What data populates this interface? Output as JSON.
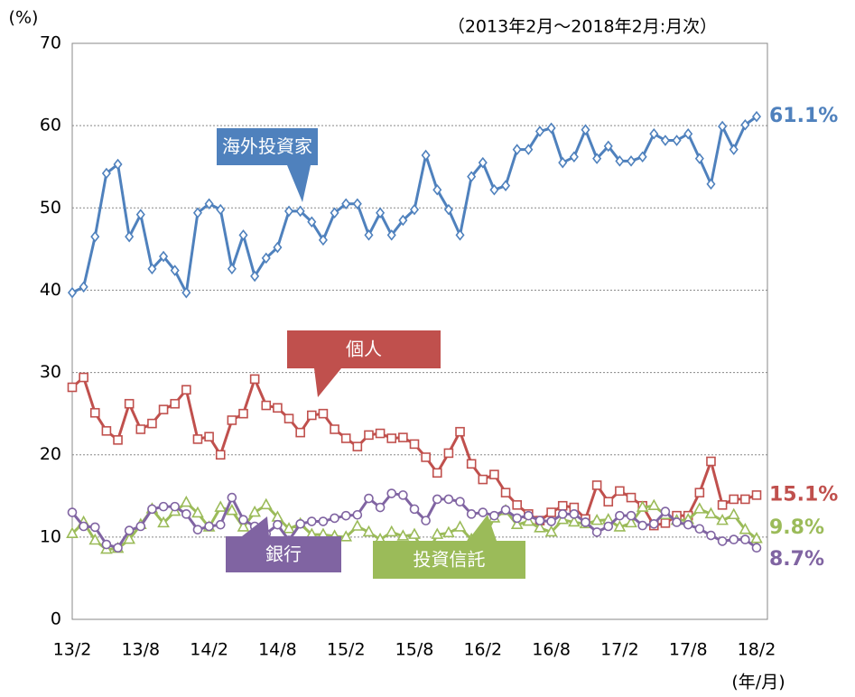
{
  "chart_data": {
    "type": "line",
    "title": "（2013年2月～2018年2月:月次）",
    "y_label": "(%)",
    "x_label": "(年/月)",
    "categories": [
      "13/2",
      null,
      null,
      null,
      null,
      null,
      "13/8",
      null,
      null,
      null,
      null,
      null,
      "14/2",
      null,
      null,
      null,
      null,
      null,
      "14/8",
      null,
      null,
      null,
      null,
      null,
      "15/2",
      null,
      null,
      null,
      null,
      null,
      "15/8",
      null,
      null,
      null,
      null,
      null,
      "16/2",
      null,
      null,
      null,
      null,
      null,
      "16/8",
      null,
      null,
      null,
      null,
      null,
      "17/2",
      null,
      null,
      null,
      null,
      null,
      "17/8",
      null,
      null,
      null,
      null,
      null,
      "18/2"
    ],
    "ylim": [
      0,
      70
    ],
    "yticks": [
      0,
      10,
      20,
      30,
      40,
      50,
      60,
      70
    ],
    "grid": true,
    "series": [
      {
        "name": "海外投資家",
        "color": "#4f81bd",
        "marker": "diamond",
        "end_label": "61.1%",
        "values": [
          39.7,
          40.4,
          46.5,
          54.2,
          55.3,
          46.5,
          49.2,
          42.6,
          44.1,
          42.4,
          39.7,
          49.4,
          50.5,
          49.8,
          42.6,
          46.7,
          41.7,
          43.9,
          45.2,
          49.6,
          49.6,
          48.3,
          46.1,
          49.4,
          50.5,
          50.5,
          46.7,
          49.4,
          46.7,
          48.5,
          49.8,
          56.4,
          52.2,
          49.8,
          46.7,
          53.8,
          55.5,
          52.2,
          52.7,
          57.1,
          57.1,
          59.3,
          59.7,
          55.5,
          56.2,
          59.5,
          56.0,
          57.5,
          55.7,
          55.7,
          56.2,
          59.0,
          58.2,
          58.2,
          59.0,
          56.0,
          52.9,
          59.9,
          57.1,
          60.1,
          61.1
        ]
      },
      {
        "name": "個人",
        "color": "#c0504d",
        "marker": "square",
        "end_label": "15.1%",
        "values": [
          28.2,
          29.4,
          25.1,
          22.9,
          21.8,
          26.2,
          23.1,
          23.8,
          25.5,
          26.2,
          27.9,
          21.9,
          22.2,
          20.0,
          24.2,
          25.0,
          29.2,
          26.0,
          25.7,
          24.4,
          22.7,
          24.8,
          25.0,
          23.1,
          22.0,
          21.0,
          22.4,
          22.6,
          22.0,
          22.1,
          21.3,
          19.7,
          17.8,
          20.2,
          22.8,
          18.9,
          17.0,
          17.6,
          15.4,
          13.9,
          12.8,
          12.0,
          13.0,
          13.8,
          13.6,
          12.2,
          16.3,
          14.3,
          15.6,
          14.8,
          13.8,
          11.4,
          11.7,
          12.6,
          12.6,
          15.4,
          19.2,
          13.9,
          14.6,
          14.6,
          15.1
        ]
      },
      {
        "name": "投資信託",
        "color": "#9bbb59",
        "marker": "triangle",
        "end_label": "9.8%",
        "values": [
          10.4,
          11.8,
          9.6,
          8.5,
          8.6,
          9.7,
          11.5,
          13.4,
          11.7,
          13.1,
          14.2,
          12.9,
          11.2,
          13.6,
          13.2,
          11.2,
          13.0,
          13.9,
          12.4,
          11.0,
          11.6,
          10.3,
          10.3,
          10.1,
          10.0,
          11.3,
          10.6,
          9.7,
          10.6,
          10.1,
          10.3,
          7.5,
          10.3,
          10.5,
          11.2,
          9.7,
          9.8,
          12.3,
          13.2,
          11.5,
          11.9,
          11.1,
          10.6,
          12.1,
          11.8,
          11.6,
          12.0,
          12.1,
          11.2,
          11.7,
          13.6,
          13.8,
          12.7,
          12.0,
          12.1,
          13.4,
          12.8,
          12.0,
          12.7,
          10.9,
          9.8
        ]
      },
      {
        "name": "銀行",
        "color": "#8064a2",
        "marker": "circle",
        "end_label": "8.7%",
        "values": [
          13.0,
          11.3,
          11.2,
          9.1,
          8.7,
          10.8,
          11.3,
          13.4,
          13.7,
          13.7,
          12.8,
          10.9,
          11.3,
          11.5,
          14.8,
          12.1,
          11.3,
          10.4,
          11.5,
          9.6,
          11.6,
          11.9,
          11.9,
          12.3,
          12.6,
          12.7,
          14.7,
          13.6,
          15.3,
          15.1,
          13.4,
          12.0,
          14.6,
          14.6,
          14.3,
          12.8,
          13.0,
          12.6,
          13.3,
          12.3,
          12.6,
          12.0,
          11.9,
          12.8,
          12.8,
          11.8,
          10.6,
          11.3,
          12.6,
          12.6,
          11.4,
          11.6,
          13.1,
          11.8,
          11.5,
          11.0,
          10.2,
          9.5,
          9.7,
          9.7,
          8.7
        ]
      }
    ]
  }
}
